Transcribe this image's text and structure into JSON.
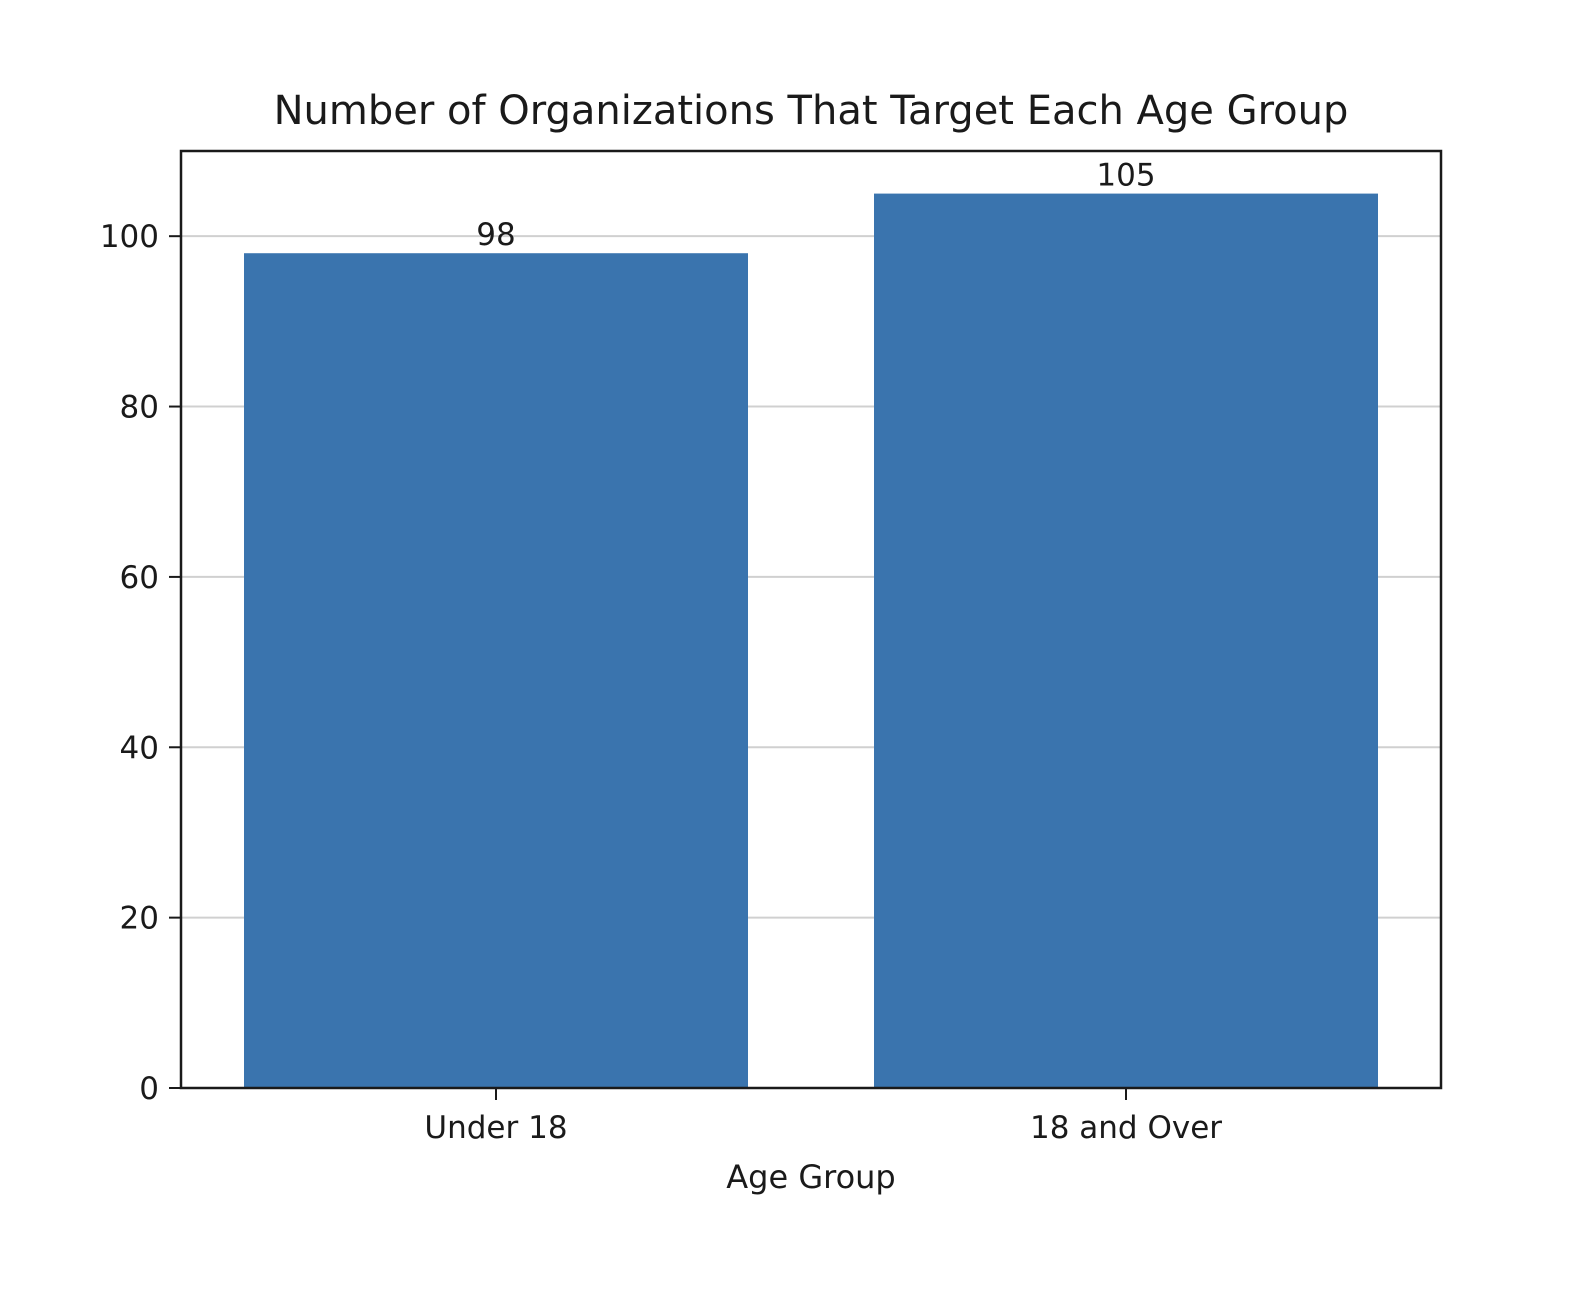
{
  "chart_data": {
    "type": "bar",
    "title": "Number of Organizations That Target Each Age Group",
    "xlabel": "Age Group",
    "ylabel": "",
    "categories": [
      "Under 18",
      "18 and Over"
    ],
    "values": [
      98,
      105
    ],
    "value_labels": [
      "98",
      "105"
    ],
    "ylim": [
      0,
      110
    ],
    "yticks": [
      0,
      20,
      40,
      60,
      80,
      100
    ],
    "ytick_labels": [
      "0",
      "20",
      "40",
      "60",
      "80",
      "100"
    ],
    "grid": "y",
    "legend": "none",
    "bar_color": "#3a74ae"
  }
}
